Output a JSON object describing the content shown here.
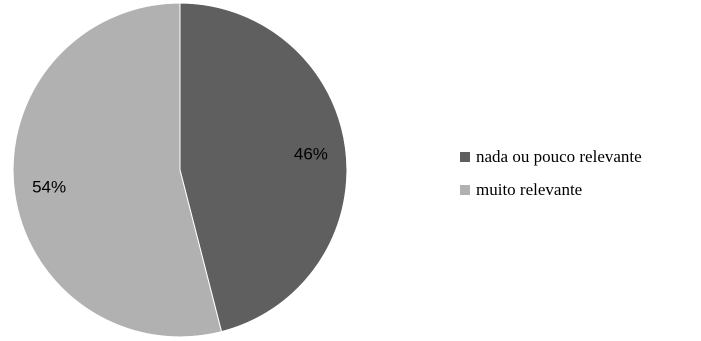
{
  "chart_data": {
    "type": "pie",
    "categories": [
      "nada ou pouco relevante",
      "muito relevante"
    ],
    "values": [
      46,
      54
    ],
    "labels": [
      "46%",
      "54%"
    ],
    "colors": [
      "#5f5f5f",
      "#b1b1b1"
    ],
    "legend_position": "right",
    "start_angle_deg": 0,
    "direction": "clockwise"
  },
  "legend": {
    "items": [
      {
        "label": "nada ou pouco relevante",
        "color": "#5f5f5f"
      },
      {
        "label": "muito relevante",
        "color": "#b1b1b1"
      }
    ]
  }
}
